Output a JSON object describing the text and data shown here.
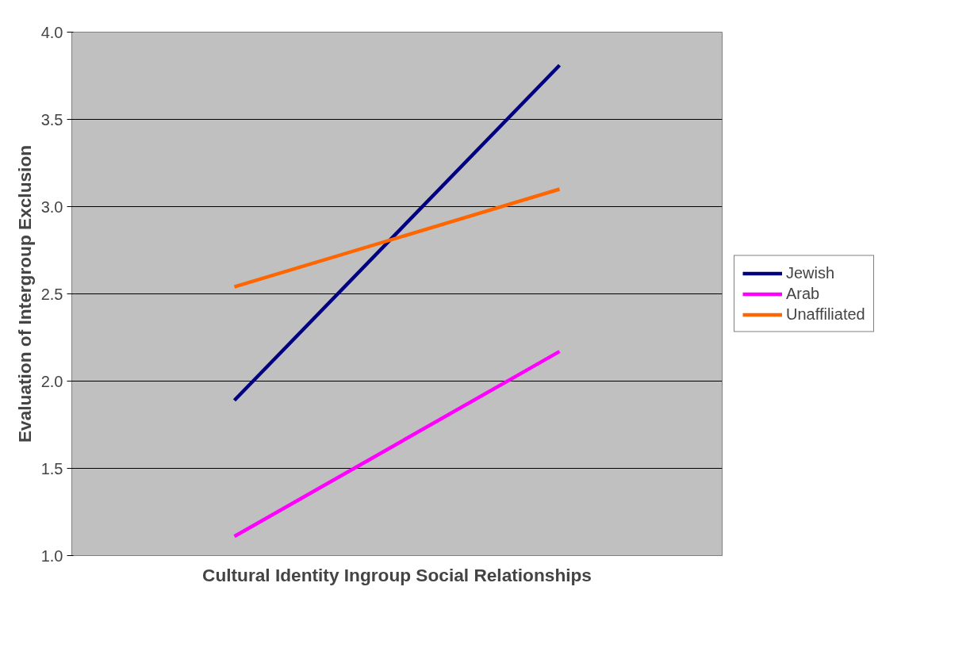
{
  "chart_data": {
    "type": "line",
    "xlabel": "Cultural Identity Ingroup Social Relationships",
    "ylabel": "Evaluation of Intergroup Exclusion",
    "categories": [
      null,
      null
    ],
    "series": [
      {
        "name": "Jewish",
        "color": "#000080",
        "values": [
          1.89,
          3.81
        ]
      },
      {
        "name": "Arab",
        "color": "#ff00ff",
        "values": [
          1.11,
          2.17
        ]
      },
      {
        "name": "Unaffiliated",
        "color": "#ff6600",
        "values": [
          2.54,
          3.1
        ]
      }
    ],
    "ylim": [
      1.0,
      4.0
    ],
    "yticks": [
      {
        "value": 1.0,
        "label": "1.0"
      },
      {
        "value": 1.5,
        "label": "1.5"
      },
      {
        "value": 2.0,
        "label": "2.0"
      },
      {
        "value": 2.5,
        "label": "2.5"
      },
      {
        "value": 3.0,
        "label": "3.0"
      },
      {
        "value": 3.5,
        "label": "3.5"
      },
      {
        "value": 4.0,
        "label": "4.0"
      }
    ],
    "grid": "y",
    "legend": "right",
    "marker": "none",
    "line_style": "solid"
  }
}
